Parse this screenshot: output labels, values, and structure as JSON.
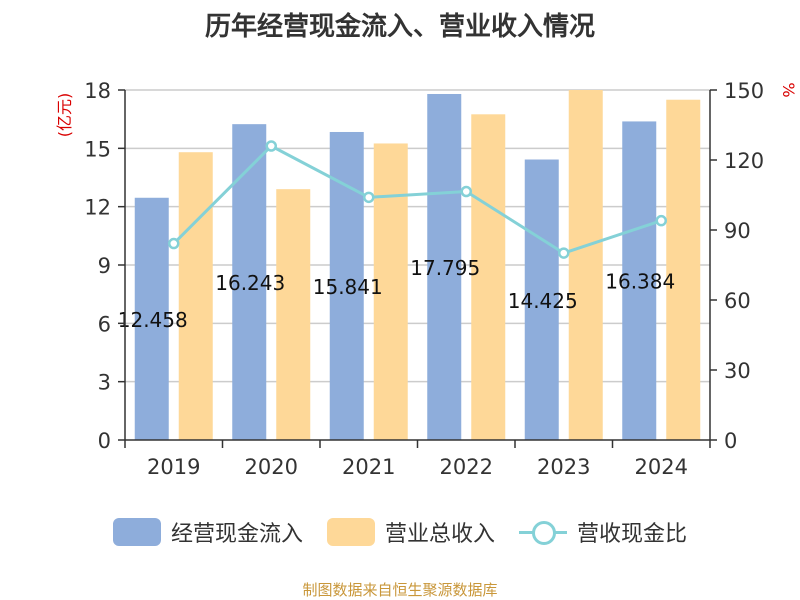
{
  "title": "历年经营现金流入、营业收入情况",
  "source_note": "制图数据来自恒生聚源数据库",
  "colors": {
    "cash_inflow": "#8EADDB",
    "revenue": "#FED898",
    "ratio_line": "#84D1D7",
    "axis_label": "#d90000"
  },
  "chart_data": {
    "type": "bar",
    "categories": [
      "2019",
      "2020",
      "2021",
      "2022",
      "2023",
      "2024"
    ],
    "series": [
      {
        "name": "经营现金流入",
        "axis": "left",
        "type": "bar",
        "values": [
          12.458,
          16.243,
          15.841,
          17.795,
          14.425,
          16.384
        ],
        "labels": [
          "12.458",
          "16.243",
          "15.841",
          "17.795",
          "14.425",
          "16.384"
        ]
      },
      {
        "name": "营业总收入",
        "axis": "left",
        "type": "bar",
        "values": [
          14.8,
          12.9,
          15.25,
          16.75,
          18.0,
          17.5
        ]
      },
      {
        "name": "营收现金比",
        "axis": "right",
        "type": "line",
        "values": [
          84.2,
          126,
          104,
          106.5,
          80.1,
          94
        ]
      }
    ],
    "ylabel_left": "(亿元)",
    "ylabel_right": "%",
    "ylim_left": [
      0,
      18
    ],
    "yticks_left": [
      0,
      3,
      6,
      9,
      12,
      15,
      18
    ],
    "ylim_right": [
      0,
      150
    ],
    "yticks_right": [
      0,
      30,
      60,
      90,
      120,
      150
    ],
    "grid": true,
    "legend_position": "bottom"
  }
}
